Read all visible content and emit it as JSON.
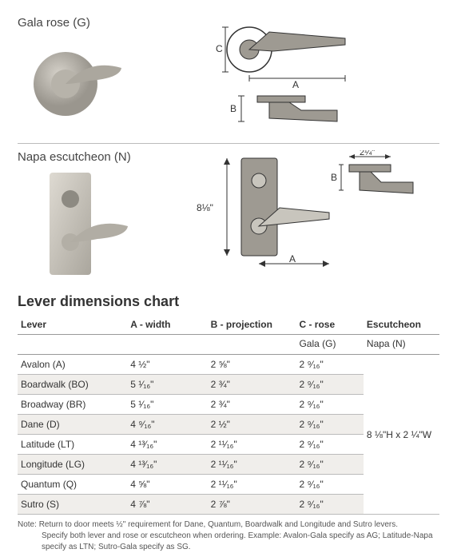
{
  "products": [
    {
      "label": "Gala rose (G)",
      "dims": {
        "A": "A",
        "B": "B",
        "C": "C"
      }
    },
    {
      "label": "Napa escutcheon (N)",
      "dims": {
        "A": "A",
        "B": "B",
        "height": "8⅛\"",
        "width": "2¼\""
      }
    }
  ],
  "chart": {
    "title": "Lever dimensions chart",
    "columns": [
      "Lever",
      "A - width",
      "B - projection",
      "C - rose",
      "Escutcheon"
    ],
    "subheaders": {
      "c_rose": "Gala (G)",
      "escutcheon": "Napa (N)"
    },
    "rows": [
      {
        "lever": "Avalon (A)",
        "a": "4 ½\"",
        "b": "2 ⅝\"",
        "c": "2 ⁹⁄₁₆\""
      },
      {
        "lever": "Boardwalk (BO)",
        "a": "5 ¹⁄₁₆\"",
        "b": "2 ¾\"",
        "c": "2 ⁹⁄₁₆\""
      },
      {
        "lever": "Broadway (BR)",
        "a": "5 ¹⁄₁₆\"",
        "b": "2 ¾\"",
        "c": "2 ⁹⁄₁₆\""
      },
      {
        "lever": "Dane (D)",
        "a": "4 ⁹⁄₁₆\"",
        "b": "2 ½\"",
        "c": "2 ⁹⁄₁₆\""
      },
      {
        "lever": "Latitude (LT)",
        "a": "4 ¹³⁄₁₆\"",
        "b": "2 ¹¹⁄₁₆\"",
        "c": "2 ⁹⁄₁₆\""
      },
      {
        "lever": "Longitude (LG)",
        "a": "4 ¹³⁄₁₆\"",
        "b": "2 ¹¹⁄₁₆\"",
        "c": "2 ⁹⁄₁₆\""
      },
      {
        "lever": "Quantum (Q)",
        "a": "4 ⅝\"",
        "b": "2 ¹¹⁄₁₆\"",
        "c": "2 ⁹⁄₁₆\""
      },
      {
        "lever": "Sutro (S)",
        "a": "4 ⅞\"",
        "b": "2 ⅞\"",
        "c": "2 ⁹⁄₁₆\""
      }
    ],
    "escutcheon_value": "8 ⅛\"H x 2 ¼\"W",
    "column_widths": [
      "26%",
      "19%",
      "21%",
      "16%",
      "18%"
    ]
  },
  "note": {
    "prefix": "Note:",
    "line1": "Return to door meets ½\" requirement for Dane, Quantum, Boardwalk and Longitude and Sutro levers.",
    "line2": "Specify both lever and rose or escutcheon when ordering. Example: Avalon-Gala specify as AG; Latitude-Napa specify as LTN; Sutro-Gala specify as SG."
  },
  "colors": {
    "text": "#333333",
    "border": "#bbbbbb",
    "header_border": "#999999",
    "stripe": "#f0eeeb",
    "diagram_fill": "#9e9a92",
    "diagram_stroke": "#333333"
  }
}
